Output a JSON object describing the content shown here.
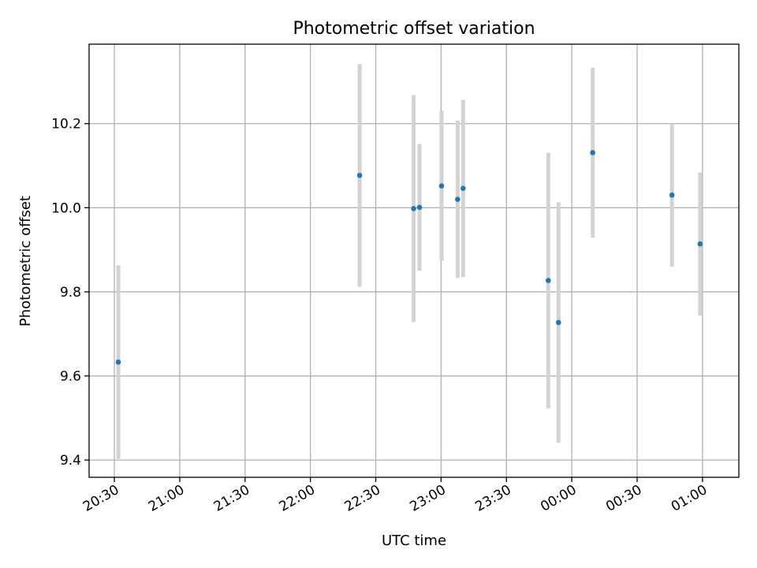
{
  "chart_data": {
    "type": "scatter",
    "title": "Photometric offset variation",
    "xlabel": "UTC time",
    "ylabel": "Photometric offset",
    "x_ticks": [
      {
        "value": 0,
        "label": "20:30"
      },
      {
        "value": 30,
        "label": "21:00"
      },
      {
        "value": 60,
        "label": "21:30"
      },
      {
        "value": 90,
        "label": "22:00"
      },
      {
        "value": 120,
        "label": "22:30"
      },
      {
        "value": 150,
        "label": "23:00"
      },
      {
        "value": 180,
        "label": "23:30"
      },
      {
        "value": 210,
        "label": "00:00"
      },
      {
        "value": 240,
        "label": "00:30"
      },
      {
        "value": 270,
        "label": "01:00"
      }
    ],
    "y_ticks": [
      {
        "value": 9.4,
        "label": "9.4"
      },
      {
        "value": 9.6,
        "label": "9.6"
      },
      {
        "value": 9.8,
        "label": "9.8"
      },
      {
        "value": 10.0,
        "label": "10.0"
      },
      {
        "value": 10.2,
        "label": "10.2"
      }
    ],
    "xlim": [
      -11.6,
      286.7
    ],
    "ylim": [
      9.359,
      10.389
    ],
    "grid": true,
    "colors": {
      "point": "#1f77b4",
      "errorbar": "#d3d3d3",
      "grid": "#b0b0b0"
    },
    "points": [
      {
        "time": "20:32",
        "x": 1.8,
        "y": 9.633,
        "err": 0.23
      },
      {
        "time": "22:23",
        "x": 112.6,
        "y": 10.077,
        "err": 0.265
      },
      {
        "time": "22:47",
        "x": 137.4,
        "y": 9.998,
        "err": 0.27
      },
      {
        "time": "22:50",
        "x": 140.1,
        "y": 10.001,
        "err": 0.151
      },
      {
        "time": "23:00",
        "x": 150.2,
        "y": 10.052,
        "err": 0.179
      },
      {
        "time": "23:08",
        "x": 157.6,
        "y": 10.02,
        "err": 0.187
      },
      {
        "time": "23:10",
        "x": 160.1,
        "y": 10.046,
        "err": 0.211
      },
      {
        "time": "23:49",
        "x": 199.2,
        "y": 9.827,
        "err": 0.304
      },
      {
        "time": "23:54",
        "x": 203.9,
        "y": 9.727,
        "err": 0.286
      },
      {
        "time": "00:10",
        "x": 219.6,
        "y": 10.131,
        "err": 0.202
      },
      {
        "time": "00:46",
        "x": 256.0,
        "y": 10.03,
        "err": 0.17
      },
      {
        "time": "00:59",
        "x": 268.9,
        "y": 9.914,
        "err": 0.17
      }
    ]
  }
}
